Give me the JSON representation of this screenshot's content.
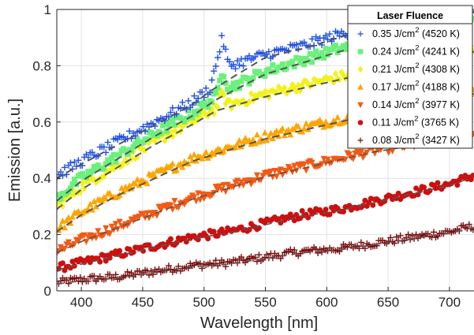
{
  "chart_data": {
    "type": "scatter",
    "title": "",
    "xlabel": "Wavelength [nm]",
    "ylabel": "Emission [a.u.]",
    "xlim": [
      380,
      720
    ],
    "ylim": [
      0,
      1
    ],
    "xticks": [
      400,
      450,
      500,
      550,
      600,
      650,
      700
    ],
    "yticks": [
      0,
      0.2,
      0.4,
      0.6,
      0.8,
      1
    ],
    "grid": true,
    "legend": {
      "title": "Laser Fluence",
      "placement": "top-right"
    },
    "fit_line_style": "dashed",
    "fit_line_color": "#555555",
    "series": [
      {
        "name": "0.35 J/cm",
        "sup": "2",
        "temp": " (4520 K)",
        "marker": "plus",
        "color": "#1f4fe0",
        "x": [
          380,
          400,
          430,
          460,
          490,
          505,
          515,
          520,
          550,
          580,
          610,
          640,
          670,
          700,
          720
        ],
        "y": [
          0.41,
          0.46,
          0.53,
          0.6,
          0.67,
          0.72,
          0.9,
          0.8,
          0.84,
          0.87,
          0.91,
          0.95,
          0.97,
          0.99,
          1.0
        ]
      },
      {
        "name": "0.24 J/cm",
        "sup": "2",
        "temp": " (4241 K)",
        "marker": "square",
        "color": "#6cf07c",
        "x": [
          380,
          400,
          430,
          460,
          490,
          510,
          515,
          520,
          550,
          580,
          610,
          640,
          670,
          700,
          720
        ],
        "y": [
          0.33,
          0.4,
          0.48,
          0.56,
          0.63,
          0.69,
          0.79,
          0.72,
          0.78,
          0.82,
          0.86,
          0.89,
          0.92,
          0.95,
          0.97
        ]
      },
      {
        "name": "0.21 J/cm",
        "sup": "2",
        "temp": " (4308 K)",
        "marker": "diamond",
        "color": "#f2f21a",
        "x": [
          380,
          400,
          430,
          460,
          490,
          510,
          515,
          520,
          550,
          580,
          610,
          640,
          670,
          700,
          720
        ],
        "y": [
          0.3,
          0.37,
          0.45,
          0.53,
          0.6,
          0.65,
          0.7,
          0.66,
          0.7,
          0.73,
          0.76,
          0.79,
          0.82,
          0.84,
          0.86
        ]
      },
      {
        "name": "0.17 J/cm",
        "sup": "2",
        "temp": " (4188 K)",
        "marker": "triangle-up",
        "color": "#ffa500",
        "x": [
          380,
          400,
          430,
          460,
          490,
          520,
          550,
          580,
          610,
          640,
          670,
          700,
          720
        ],
        "y": [
          0.22,
          0.28,
          0.35,
          0.41,
          0.47,
          0.51,
          0.55,
          0.58,
          0.61,
          0.64,
          0.67,
          0.69,
          0.71
        ]
      },
      {
        "name": "0.14 J/cm",
        "sup": "2",
        "temp": " (3977 K)",
        "marker": "triangle-down",
        "color": "#f25a14",
        "x": [
          380,
          400,
          430,
          460,
          490,
          520,
          550,
          580,
          610,
          640,
          670,
          700,
          720
        ],
        "y": [
          0.14,
          0.18,
          0.23,
          0.28,
          0.33,
          0.37,
          0.41,
          0.44,
          0.47,
          0.5,
          0.52,
          0.54,
          0.56
        ]
      },
      {
        "name": "0.11 J/cm",
        "sup": "2",
        "temp": " (3765 K)",
        "marker": "circle",
        "color": "#cc1010",
        "x": [
          380,
          400,
          430,
          460,
          490,
          520,
          550,
          580,
          610,
          640,
          670,
          700,
          720
        ],
        "y": [
          0.08,
          0.1,
          0.13,
          0.16,
          0.19,
          0.21,
          0.24,
          0.27,
          0.29,
          0.32,
          0.35,
          0.38,
          0.41
        ]
      },
      {
        "name": "0.08 J/cm",
        "sup": "2",
        "temp": " (3427 K)",
        "marker": "plus",
        "color": "#7a0f0f",
        "x": [
          380,
          400,
          430,
          460,
          490,
          520,
          550,
          580,
          610,
          640,
          670,
          700,
          720
        ],
        "y": [
          0.03,
          0.04,
          0.05,
          0.07,
          0.09,
          0.1,
          0.12,
          0.14,
          0.15,
          0.17,
          0.19,
          0.21,
          0.23
        ]
      }
    ]
  }
}
